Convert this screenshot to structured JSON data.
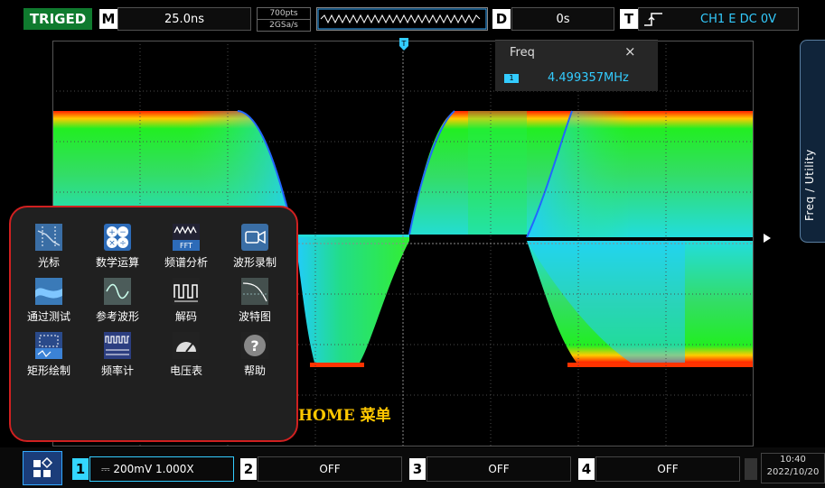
{
  "top_bar": {
    "status": "TRIGED",
    "m_label": "M",
    "timebase": "25.0ns",
    "memory_depth": "700pts",
    "sample_rate": "2GSa/s",
    "d_label": "D",
    "delay": "0s",
    "t_label": "T",
    "trigger_info": "CH1 E DC 0V"
  },
  "freq_panel": {
    "title": "Freq",
    "close": "×",
    "channel": "1",
    "value": "4.499357MHz"
  },
  "side_tab": {
    "label": "Freq / Utility"
  },
  "home_menu": {
    "items": [
      {
        "label": "光标",
        "icon": "cursor-icon"
      },
      {
        "label": "数学运算",
        "icon": "math-icon"
      },
      {
        "label": "频谱分析",
        "icon": "fft-icon"
      },
      {
        "label": "波形录制",
        "icon": "record-icon"
      },
      {
        "label": "通过测试",
        "icon": "pass-fail-icon"
      },
      {
        "label": "参考波形",
        "icon": "reference-wave-icon"
      },
      {
        "label": "解码",
        "icon": "decode-icon"
      },
      {
        "label": "波特图",
        "icon": "bode-icon"
      },
      {
        "label": "矩形绘制",
        "icon": "zone-draw-icon"
      },
      {
        "label": "频率计",
        "icon": "frequency-counter-icon"
      },
      {
        "label": "电压表",
        "icon": "voltmeter-icon"
      },
      {
        "label": "帮助",
        "icon": "help-icon"
      }
    ]
  },
  "annotation": {
    "home_label": "HOME 菜单"
  },
  "bottom_bar": {
    "channels": [
      {
        "number": "1",
        "setting": "⎓ 200mV 1.000X"
      },
      {
        "number": "2",
        "setting": "OFF"
      },
      {
        "number": "3",
        "setting": "OFF"
      },
      {
        "number": "4",
        "setting": "OFF"
      }
    ],
    "time": "10:40",
    "date": "2022/10/20"
  },
  "colors": {
    "triged": "#0f7a2e",
    "trigger_text": "#33ccff",
    "channel1": "#33d6ff",
    "menu_border": "#d02020",
    "home_label": "#ffc800"
  }
}
